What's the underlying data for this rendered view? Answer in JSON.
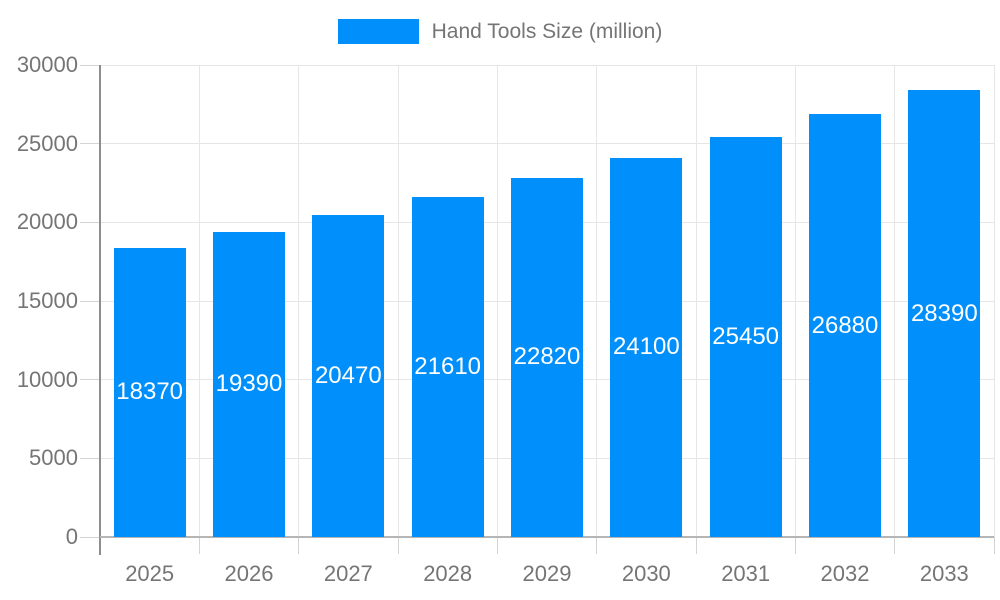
{
  "chart_data": {
    "type": "bar",
    "title": "Hand Tools Size (million)",
    "legend": {
      "label": "Hand Tools Size (million)",
      "position": "top-center",
      "swatch_color": "#008ffb"
    },
    "categories": [
      "2025",
      "2026",
      "2027",
      "2028",
      "2029",
      "2030",
      "2031",
      "2032",
      "2033"
    ],
    "series": [
      {
        "name": "Hand Tools Size (million)",
        "values": [
          18370,
          19390,
          20470,
          21610,
          22820,
          24100,
          25450,
          26880,
          28390
        ]
      }
    ],
    "data_labels": [
      "18370",
      "19390",
      "20470",
      "21610",
      "22820",
      "24100",
      "25450",
      "26880",
      "28390"
    ],
    "xlabel": "",
    "ylabel": "",
    "ylim": [
      0,
      30000
    ],
    "ytick_step": 5000,
    "ytick_labels": [
      "0",
      "5000",
      "10000",
      "15000",
      "20000",
      "25000",
      "30000"
    ],
    "grid": "horizontal-and-vertical",
    "colors": {
      "bar": "#008ffb",
      "bar_label_text": "#ffffff",
      "axis_text": "#757575",
      "gridline": "#e6e6e6",
      "y_axis_line": "#8e8e8e",
      "x_axis_line": "#b5b5b5",
      "background": "#ffffff"
    }
  }
}
